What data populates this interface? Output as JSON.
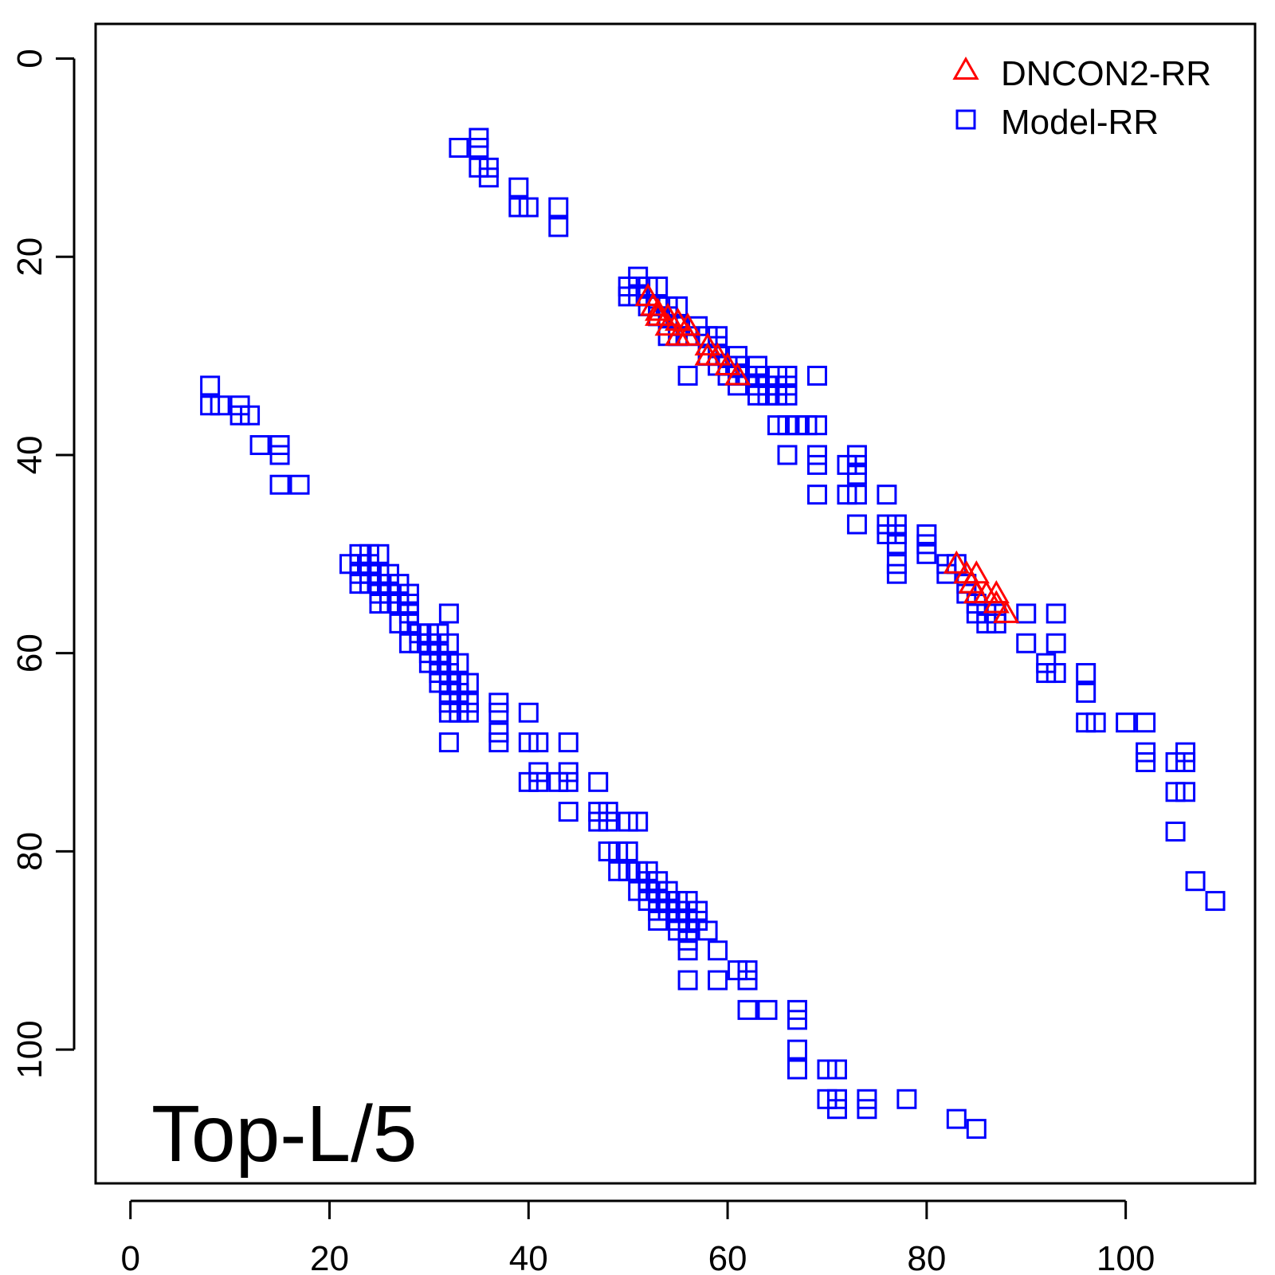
{
  "chart_data": {
    "type": "scatter",
    "title": "",
    "xlabel": "",
    "ylabel": "",
    "xlim": [
      -3.5,
      113
    ],
    "ylim": [
      113.5,
      -3.5
    ],
    "y_reversed": true,
    "xticks": [
      0,
      20,
      40,
      60,
      80,
      100
    ],
    "yticks": [
      0,
      20,
      40,
      60,
      80,
      100
    ],
    "grid": false,
    "legend_position": "top-right",
    "annotation": "Top-L/5",
    "series": [
      {
        "name": "DNCON2-RR",
        "marker": "triangle",
        "color": "#ff0000",
        "points": [
          [
            52,
            24
          ],
          [
            52.5,
            25
          ],
          [
            53,
            25.5
          ],
          [
            53,
            26
          ],
          [
            54,
            26
          ],
          [
            54,
            27
          ],
          [
            55,
            26.5
          ],
          [
            55,
            28
          ],
          [
            56,
            27
          ],
          [
            56,
            28
          ],
          [
            58,
            29
          ],
          [
            58,
            30
          ],
          [
            59,
            30
          ],
          [
            60,
            31
          ],
          [
            61,
            32
          ],
          [
            83,
            51
          ],
          [
            84,
            52
          ],
          [
            84.5,
            53
          ],
          [
            85,
            52
          ],
          [
            85,
            54
          ],
          [
            86,
            54
          ],
          [
            87,
            54
          ],
          [
            87,
            55
          ],
          [
            88,
            56
          ]
        ]
      },
      {
        "name": "Model-RR",
        "marker": "square",
        "color": "#0000ff",
        "points": [
          [
            33,
            9
          ],
          [
            35,
            8
          ],
          [
            35,
            9
          ],
          [
            35,
            11
          ],
          [
            36,
            11
          ],
          [
            36,
            12
          ],
          [
            39,
            13
          ],
          [
            39,
            15
          ],
          [
            40,
            15
          ],
          [
            43,
            15
          ],
          [
            43,
            17
          ],
          [
            51,
            22
          ],
          [
            50,
            23
          ],
          [
            50,
            24
          ],
          [
            51,
            24
          ],
          [
            52,
            23
          ],
          [
            53,
            23
          ],
          [
            52,
            25
          ],
          [
            53,
            25
          ],
          [
            54,
            25
          ],
          [
            55,
            25
          ],
          [
            53,
            26
          ],
          [
            54,
            26
          ],
          [
            55,
            27
          ],
          [
            54,
            28
          ],
          [
            55,
            28
          ],
          [
            56,
            28
          ],
          [
            57,
            27
          ],
          [
            58,
            28
          ],
          [
            59,
            28
          ],
          [
            59,
            29
          ],
          [
            58,
            30
          ],
          [
            59,
            30
          ],
          [
            59,
            31
          ],
          [
            60,
            31
          ],
          [
            61,
            30
          ],
          [
            61,
            31
          ],
          [
            60,
            32
          ],
          [
            61,
            32
          ],
          [
            61,
            33
          ],
          [
            62,
            32
          ],
          [
            63,
            31
          ],
          [
            63,
            32
          ],
          [
            63,
            33
          ],
          [
            64,
            33
          ],
          [
            63,
            34
          ],
          [
            64,
            34
          ],
          [
            65,
            32
          ],
          [
            65,
            33
          ],
          [
            65,
            34
          ],
          [
            66,
            32
          ],
          [
            66,
            33
          ],
          [
            66,
            34
          ],
          [
            56,
            32
          ],
          [
            69,
            32
          ],
          [
            65,
            37
          ],
          [
            66,
            37
          ],
          [
            67,
            37
          ],
          [
            68,
            37
          ],
          [
            69,
            37
          ],
          [
            66,
            40
          ],
          [
            69,
            40
          ],
          [
            69,
            41
          ],
          [
            69,
            44
          ],
          [
            72,
            41
          ],
          [
            73,
            40
          ],
          [
            73,
            41
          ],
          [
            73,
            42
          ],
          [
            73,
            44
          ],
          [
            72,
            44
          ],
          [
            73,
            47
          ],
          [
            76,
            44
          ],
          [
            76,
            47
          ],
          [
            76,
            48
          ],
          [
            77,
            47
          ],
          [
            77,
            48
          ],
          [
            77,
            49
          ],
          [
            77,
            51
          ],
          [
            77,
            52
          ],
          [
            80,
            48
          ],
          [
            80,
            49
          ],
          [
            80,
            50
          ],
          [
            82,
            51
          ],
          [
            82,
            52
          ],
          [
            83,
            51
          ],
          [
            84,
            53
          ],
          [
            84,
            54
          ],
          [
            85,
            55
          ],
          [
            85,
            56
          ],
          [
            86,
            56
          ],
          [
            87,
            56
          ],
          [
            86,
            57
          ],
          [
            87,
            57
          ],
          [
            90,
            56
          ],
          [
            93,
            56
          ],
          [
            90,
            59
          ],
          [
            93,
            59
          ],
          [
            92,
            61
          ],
          [
            92,
            62
          ],
          [
            93,
            62
          ],
          [
            96,
            62
          ],
          [
            96,
            64
          ],
          [
            96,
            67
          ],
          [
            97,
            67
          ],
          [
            100,
            67
          ],
          [
            102,
            67
          ],
          [
            102,
            70
          ],
          [
            102,
            71
          ],
          [
            105,
            71
          ],
          [
            106,
            70
          ],
          [
            106,
            71
          ],
          [
            105,
            74
          ],
          [
            106,
            74
          ],
          [
            105,
            78
          ],
          [
            107,
            83
          ],
          [
            109,
            85
          ],
          [
            8,
            33
          ],
          [
            8,
            35
          ],
          [
            9,
            35
          ],
          [
            11,
            35
          ],
          [
            11,
            36
          ],
          [
            12,
            36
          ],
          [
            13,
            39
          ],
          [
            15,
            39
          ],
          [
            15,
            40
          ],
          [
            15,
            43
          ],
          [
            17,
            43
          ],
          [
            22,
            51
          ],
          [
            23,
            50
          ],
          [
            23,
            51
          ],
          [
            23,
            52
          ],
          [
            23,
            53
          ],
          [
            24,
            50
          ],
          [
            24,
            51
          ],
          [
            24,
            52
          ],
          [
            24,
            53
          ],
          [
            25,
            50
          ],
          [
            25,
            52
          ],
          [
            25,
            53
          ],
          [
            25,
            54
          ],
          [
            25,
            55
          ],
          [
            26,
            52
          ],
          [
            26,
            53
          ],
          [
            26,
            54
          ],
          [
            26,
            55
          ],
          [
            27,
            53
          ],
          [
            27,
            55
          ],
          [
            27,
            57
          ],
          [
            28,
            54
          ],
          [
            28,
            55
          ],
          [
            28,
            56
          ],
          [
            28,
            57
          ],
          [
            28,
            59
          ],
          [
            29,
            58
          ],
          [
            29,
            59
          ],
          [
            30,
            58
          ],
          [
            30,
            59
          ],
          [
            30,
            60
          ],
          [
            30,
            61
          ],
          [
            31,
            58
          ],
          [
            31,
            60
          ],
          [
            31,
            61
          ],
          [
            31,
            62
          ],
          [
            31,
            63
          ],
          [
            32,
            56
          ],
          [
            32,
            59
          ],
          [
            32,
            61
          ],
          [
            32,
            62
          ],
          [
            32,
            63
          ],
          [
            32,
            64
          ],
          [
            32,
            65
          ],
          [
            32,
            66
          ],
          [
            33,
            61
          ],
          [
            33,
            63
          ],
          [
            33,
            64
          ],
          [
            33,
            65
          ],
          [
            33,
            66
          ],
          [
            34,
            63
          ],
          [
            34,
            65
          ],
          [
            34,
            66
          ],
          [
            32,
            69
          ],
          [
            37,
            65
          ],
          [
            37,
            66
          ],
          [
            37,
            68
          ],
          [
            37,
            69
          ],
          [
            40,
            66
          ],
          [
            40,
            69
          ],
          [
            41,
            69
          ],
          [
            41,
            72
          ],
          [
            41,
            73
          ],
          [
            40,
            73
          ],
          [
            43,
            73
          ],
          [
            44,
            72
          ],
          [
            44,
            73
          ],
          [
            44,
            69
          ],
          [
            44,
            76
          ],
          [
            47,
            73
          ],
          [
            47,
            76
          ],
          [
            47,
            77
          ],
          [
            48,
            76
          ],
          [
            48,
            77
          ],
          [
            50,
            77
          ],
          [
            51,
            77
          ],
          [
            48,
            80
          ],
          [
            49,
            80
          ],
          [
            50,
            80
          ],
          [
            49,
            82
          ],
          [
            50,
            82
          ],
          [
            51,
            82
          ],
          [
            52,
            82
          ],
          [
            52,
            83
          ],
          [
            53,
            83
          ],
          [
            53,
            84
          ],
          [
            51,
            84
          ],
          [
            52,
            84
          ],
          [
            52,
            85
          ],
          [
            54,
            84
          ],
          [
            54,
            85
          ],
          [
            55,
            85
          ],
          [
            56,
            85
          ],
          [
            53,
            86
          ],
          [
            54,
            86
          ],
          [
            55,
            86
          ],
          [
            56,
            86
          ],
          [
            57,
            86
          ],
          [
            53,
            87
          ],
          [
            55,
            87
          ],
          [
            57,
            87
          ],
          [
            55,
            88
          ],
          [
            56,
            88
          ],
          [
            58,
            88
          ],
          [
            56,
            89
          ],
          [
            56,
            90
          ],
          [
            59,
            90
          ],
          [
            56,
            93
          ],
          [
            59,
            93
          ],
          [
            61,
            92
          ],
          [
            62,
            92
          ],
          [
            62,
            93
          ],
          [
            62,
            96
          ],
          [
            64,
            96
          ],
          [
            67,
            96
          ],
          [
            67,
            97
          ],
          [
            67,
            100
          ],
          [
            67,
            102
          ],
          [
            70,
            102
          ],
          [
            71,
            102
          ],
          [
            70,
            105
          ],
          [
            71,
            105
          ],
          [
            71,
            106
          ],
          [
            74,
            105
          ],
          [
            74,
            106
          ],
          [
            78,
            105
          ],
          [
            83,
            107
          ],
          [
            85,
            108
          ]
        ]
      }
    ]
  }
}
